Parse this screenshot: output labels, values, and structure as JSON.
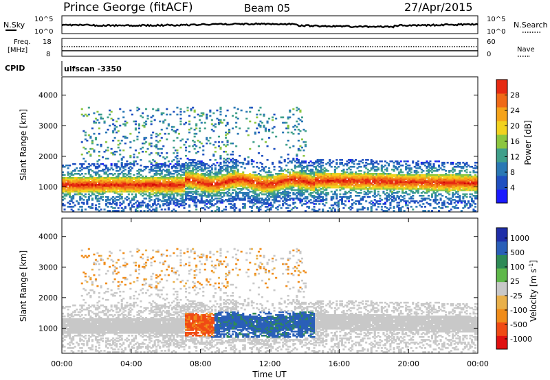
{
  "header": {
    "station": "Prince George (fitACF)",
    "beam": "Beam 05",
    "date": "27/Apr/2015"
  },
  "noise_panel": {
    "left_label": "N.Sky",
    "right_label": "N.Search",
    "left_ticks": [
      "10^5",
      "10^0"
    ],
    "right_ticks": [
      "10^5",
      "10^0"
    ]
  },
  "freq_panel": {
    "left_label_1": "Freq.",
    "left_label_2": "[MHz]",
    "right_label": "Nave",
    "left_ticks": [
      "18",
      "8"
    ],
    "right_ticks": [
      "60",
      "0"
    ]
  },
  "cpid": {
    "label": "CPID",
    "value": "ulfscan -3350"
  },
  "time_axis": {
    "label": "Time UT",
    "ticks": [
      "00:00",
      "04:00",
      "08:00",
      "12:00",
      "16:00",
      "20:00",
      "00:00"
    ]
  },
  "chart_data": [
    {
      "type": "heatmap",
      "title": "",
      "xlabel": "Time UT",
      "ylabel": "Slant Range [km]",
      "y_ticks": [
        "1000",
        "2000",
        "3000",
        "4000"
      ],
      "xlim_hours": [
        0,
        24
      ],
      "ylim_km": [
        180,
        4600
      ],
      "colorbar": {
        "label": "Power [dB]",
        "ticks": [
          "4",
          "8",
          "12",
          "16",
          "20",
          "24",
          "28"
        ],
        "range": [
          0,
          32
        ],
        "colors": [
          "#1a1aff",
          "#1f4fc0",
          "#2a78b4",
          "#3f9f8a",
          "#8cc63f",
          "#f2d21f",
          "#f5a31a",
          "#f06a17",
          "#e62a12",
          "#cc0000"
        ]
      },
      "bands_km": [
        {
          "t_range": [
            0,
            8
          ],
          "center": 1050,
          "peak_dB": 28
        },
        {
          "t_range": [
            8,
            14.5
          ],
          "center": 1100,
          "peak_dB": 24
        },
        {
          "t_range": [
            14.5,
            24
          ],
          "center": 1150,
          "peak_dB": 24
        }
      ]
    },
    {
      "type": "heatmap",
      "title": "",
      "xlabel": "Time UT",
      "ylabel": "Slant Range [km]",
      "y_ticks": [
        "1000",
        "2000",
        "3000",
        "4000"
      ],
      "xlim_hours": [
        0,
        24
      ],
      "ylim_km": [
        180,
        4600
      ],
      "colorbar": {
        "label": "Velocity [m s",
        "label_sup": "-1",
        "label_end": "]",
        "ticks": [
          "1000",
          "500",
          "100",
          "25",
          "-25",
          "-100",
          "-500",
          "-1000"
        ],
        "colors": [
          "#1f2ea8",
          "#2a5fb8",
          "#2e8a56",
          "#5fb84a",
          "#c8c8c8",
          "#e9b04a",
          "#f08c1a",
          "#f04a14",
          "#e01010"
        ]
      },
      "regions": [
        {
          "t_range": [
            8.5,
            14.5
          ],
          "range_km": [
            700,
            1500
          ],
          "velocity": 300
        },
        {
          "t_range": [
            0,
            8
          ],
          "range_km": [
            600,
            1800
          ],
          "velocity": 0
        }
      ]
    }
  ]
}
